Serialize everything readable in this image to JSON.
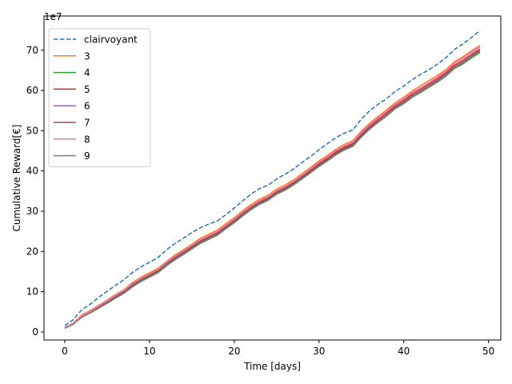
{
  "chart_data": {
    "type": "line",
    "title": "",
    "xlabel": "Time [days]",
    "ylabel": "Cumulative Reward[€]",
    "y_offset_text": "1e7",
    "y_multiplier": 10000000,
    "xlim": [
      -2.45,
      51.45
    ],
    "ylim": [
      -2.0,
      78.5
    ],
    "xticks": [
      0,
      10,
      20,
      30,
      40,
      50
    ],
    "yticks": [
      0,
      10,
      20,
      30,
      40,
      50,
      60,
      70
    ],
    "grid": false,
    "legend_position": "upper left",
    "x": [
      0,
      1,
      2,
      3,
      4,
      5,
      6,
      7,
      8,
      9,
      10,
      11,
      12,
      13,
      14,
      15,
      16,
      17,
      18,
      19,
      20,
      21,
      22,
      23,
      24,
      25,
      26,
      27,
      28,
      29,
      30,
      31,
      32,
      33,
      34,
      35,
      36,
      37,
      38,
      39,
      40,
      41,
      42,
      43,
      44,
      45,
      46,
      47,
      48,
      49
    ],
    "series": [
      {
        "name": "clairvoyant",
        "color": "#1f77b4",
        "dashed": true,
        "values": [
          1.6,
          3.0,
          5.5,
          6.9,
          8.6,
          10.1,
          11.6,
          13.0,
          14.8,
          16.2,
          17.3,
          18.5,
          20.4,
          22.0,
          23.3,
          24.7,
          25.9,
          26.8,
          27.6,
          29.1,
          30.8,
          32.6,
          34.3,
          35.6,
          36.5,
          38.0,
          39.2,
          40.5,
          42.1,
          43.6,
          45.3,
          46.8,
          48.3,
          49.4,
          50.2,
          52.9,
          55.0,
          56.6,
          58.0,
          59.8,
          61.1,
          62.7,
          64.0,
          65.2,
          66.6,
          68.2,
          70.2,
          71.6,
          73.2,
          74.9
        ]
      },
      {
        "name": "3",
        "color": "#ff7f0e",
        "dashed": false,
        "values": [
          1.1,
          2.2,
          4.2,
          5.3,
          6.6,
          7.9,
          9.3,
          10.5,
          12.3,
          13.6,
          14.7,
          15.8,
          17.5,
          19.1,
          20.4,
          21.8,
          23.3,
          24.3,
          25.3,
          26.9,
          28.4,
          30.1,
          31.7,
          33.0,
          34.0,
          35.5,
          36.5,
          37.8,
          39.3,
          40.9,
          42.5,
          43.9,
          45.4,
          46.6,
          47.5,
          49.9,
          51.9,
          53.6,
          55.2,
          57.0,
          58.3,
          59.9,
          61.2,
          62.5,
          63.8,
          65.2,
          67.2,
          68.4,
          69.9,
          71.2
        ]
      },
      {
        "name": "4",
        "color": "#2ca02c",
        "dashed": false,
        "values": [
          0.9,
          2.0,
          3.7,
          4.8,
          6.0,
          7.2,
          8.6,
          9.8,
          11.4,
          12.7,
          13.8,
          14.9,
          16.6,
          18.1,
          19.4,
          20.8,
          22.2,
          23.2,
          24.2,
          25.8,
          27.3,
          29.0,
          30.6,
          31.9,
          32.9,
          34.4,
          35.4,
          36.7,
          38.2,
          39.7,
          41.3,
          42.6,
          44.1,
          45.3,
          46.2,
          48.5,
          50.5,
          52.1,
          53.7,
          55.5,
          56.7,
          58.3,
          59.5,
          60.8,
          62.1,
          63.6,
          65.5,
          66.6,
          68.1,
          69.4
        ]
      },
      {
        "name": "5",
        "color": "#d62728",
        "dashed": false,
        "values": [
          1.0,
          2.1,
          3.9,
          5.0,
          6.3,
          7.5,
          8.9,
          10.1,
          11.8,
          13.1,
          14.2,
          15.3,
          17.0,
          18.6,
          19.9,
          21.3,
          22.7,
          23.7,
          24.7,
          26.3,
          27.8,
          29.5,
          31.1,
          32.4,
          33.4,
          34.9,
          35.9,
          37.2,
          38.7,
          40.2,
          41.8,
          43.2,
          44.7,
          45.9,
          46.8,
          49.1,
          51.1,
          52.8,
          54.4,
          56.2,
          57.5,
          59.1,
          60.3,
          61.6,
          62.9,
          64.4,
          66.3,
          67.5,
          69.0,
          70.3
        ]
      },
      {
        "name": "6",
        "color": "#9467bd",
        "dashed": false,
        "values": [
          1.0,
          2.1,
          4.0,
          5.1,
          6.4,
          7.7,
          9.1,
          10.3,
          12.0,
          13.3,
          14.4,
          15.5,
          17.2,
          18.8,
          20.1,
          21.5,
          22.9,
          23.9,
          24.9,
          26.5,
          28.0,
          29.7,
          31.3,
          32.6,
          33.6,
          35.1,
          36.1,
          37.4,
          38.9,
          40.5,
          42.1,
          43.5,
          45.0,
          46.2,
          47.1,
          49.5,
          51.5,
          53.2,
          54.8,
          56.6,
          57.9,
          59.5,
          60.7,
          62.0,
          63.3,
          64.8,
          66.8,
          68.0,
          69.5,
          70.8
        ]
      },
      {
        "name": "7",
        "color": "#8c564b",
        "dashed": false,
        "values": [
          0.9,
          2.0,
          3.8,
          4.9,
          6.1,
          7.3,
          8.7,
          9.9,
          11.6,
          12.9,
          14.0,
          15.1,
          16.8,
          18.3,
          19.6,
          21.0,
          22.4,
          23.4,
          24.4,
          26.0,
          27.5,
          29.2,
          30.8,
          32.1,
          33.1,
          34.6,
          35.6,
          36.9,
          38.4,
          39.9,
          41.5,
          42.9,
          44.4,
          45.6,
          46.5,
          48.8,
          50.8,
          52.4,
          54.0,
          55.8,
          57.1,
          58.7,
          59.9,
          61.2,
          62.5,
          64.0,
          65.9,
          67.1,
          68.6,
          69.9
        ]
      },
      {
        "name": "8",
        "color": "#e377c2",
        "dashed": false,
        "values": [
          1.0,
          2.1,
          4.0,
          5.1,
          6.4,
          7.7,
          9.1,
          10.3,
          12.0,
          13.3,
          14.4,
          15.5,
          17.3,
          18.8,
          20.1,
          21.5,
          22.9,
          23.9,
          24.9,
          26.5,
          28.0,
          29.7,
          31.3,
          32.6,
          33.6,
          35.1,
          36.1,
          37.4,
          38.9,
          40.5,
          42.1,
          43.5,
          45.0,
          46.2,
          47.1,
          49.5,
          51.5,
          53.2,
          54.8,
          56.6,
          57.9,
          59.5,
          60.7,
          62.0,
          63.4,
          64.8,
          66.8,
          68.0,
          69.6,
          70.9
        ]
      },
      {
        "name": "9",
        "color": "#7f7f7f",
        "dashed": false,
        "values": [
          0.9,
          1.9,
          3.6,
          4.7,
          5.9,
          7.1,
          8.4,
          9.6,
          11.2,
          12.5,
          13.6,
          14.7,
          16.4,
          17.9,
          19.2,
          20.6,
          22.0,
          23.0,
          24.0,
          25.6,
          27.1,
          28.8,
          30.4,
          31.7,
          32.7,
          34.2,
          35.2,
          36.5,
          38.0,
          39.5,
          41.1,
          42.5,
          44.0,
          45.2,
          46.1,
          48.4,
          50.4,
          52.1,
          53.7,
          55.5,
          56.8,
          58.4,
          59.6,
          60.9,
          62.2,
          63.7,
          65.6,
          66.8,
          68.3,
          69.6
        ]
      }
    ]
  }
}
